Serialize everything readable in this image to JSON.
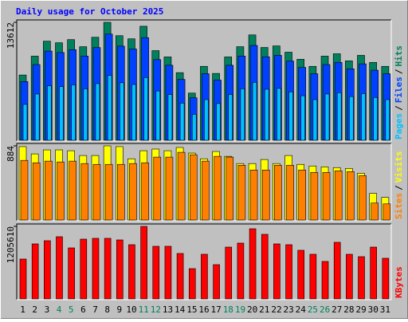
{
  "chart_data": [
    {
      "type": "bar",
      "title": "Daily usage for October 2025",
      "ylim": [
        0,
        13612
      ],
      "yticks": [
        13612
      ],
      "legend_separator": "/",
      "series": [
        {
          "name": "Hits",
          "color": "#00805c",
          "values": [
            7532,
            9710,
            11434,
            11253,
            11616,
            10799,
            11888,
            13612,
            12070,
            11707,
            13159,
            10345,
            9619,
            7804,
            5445,
            8530,
            7713,
            9619,
            10799,
            12160,
            10708,
            10890,
            10164,
            9347,
            8530,
            9710,
            9982,
            9165,
            9800,
            8984,
            8530
          ]
        },
        {
          "name": "Files",
          "color": "#0040ff",
          "values": [
            6779,
            8739,
            10291,
            10128,
            10454,
            9719,
            10699,
            12251,
            10863,
            10536,
            11843,
            9311,
            8657,
            7024,
            4901,
            7677,
            6942,
            8657,
            9719,
            10944,
            9637,
            9801,
            9148,
            8412,
            7677,
            8739,
            8984,
            8249,
            8820,
            8086,
            7677
          ]
        },
        {
          "name": "Pages",
          "color": "#00c0ff",
          "values": [
            4143,
            5341,
            6289,
            6189,
            6389,
            5939,
            6538,
            7487,
            6639,
            6439,
            7237,
            5690,
            5290,
            4292,
            2995,
            4692,
            4242,
            5290,
            5939,
            6688,
            5889,
            5990,
            5590,
            5141,
            4692,
            5341,
            5490,
            5041,
            5390,
            4941,
            4692
          ]
        }
      ]
    },
    {
      "type": "bar",
      "ylim": [
        0,
        884
      ],
      "yticks": [
        884
      ],
      "legend_separator": "/",
      "series": [
        {
          "name": "Visits",
          "color": "#ffff00",
          "values": [
            875,
            788,
            836,
            836,
            826,
            769,
            769,
            884,
            875,
            730,
            826,
            846,
            826,
            865,
            798,
            730,
            817,
            759,
            673,
            673,
            721,
            673,
            769,
            663,
            644,
            634,
            625,
            615,
            557,
            317,
            269
          ]
        },
        {
          "name": "Sites",
          "color": "#ff8000",
          "values": [
            711,
            682,
            702,
            692,
            702,
            673,
            663,
            663,
            663,
            673,
            682,
            750,
            750,
            807,
            778,
            702,
            759,
            750,
            653,
            596,
            596,
            653,
            653,
            596,
            567,
            567,
            586,
            577,
            529,
            202,
            192
          ]
        }
      ]
    },
    {
      "type": "bar",
      "ylim": [
        0,
        1205610
      ],
      "yticks": [
        1205610
      ],
      "categories": [
        "1",
        "2",
        "3",
        "4",
        "5",
        "6",
        "7",
        "8",
        "9",
        "10",
        "11",
        "12",
        "13",
        "14",
        "15",
        "16",
        "17",
        "18",
        "19",
        "20",
        "21",
        "22",
        "23",
        "24",
        "25",
        "26",
        "27",
        "28",
        "29",
        "30",
        "31"
      ],
      "category_colors": [
        "#000000",
        "#000000",
        "#000000",
        "#00805c",
        "#00805c",
        "#000000",
        "#000000",
        "#000000",
        "#000000",
        "#000000",
        "#00805c",
        "#00805c",
        "#000000",
        "#000000",
        "#000000",
        "#000000",
        "#000000",
        "#00805c",
        "#00805c",
        "#000000",
        "#000000",
        "#000000",
        "#000000",
        "#000000",
        "#00805c",
        "#00805c",
        "#000000",
        "#000000",
        "#000000",
        "#000000",
        "#000000"
      ],
      "series": [
        {
          "name": "KBytes",
          "color": "#ff0000",
          "values": [
            662450,
            914181,
            967177,
            1033422,
            847936,
            993675,
            1006924,
            1006924,
            980426,
            900932,
            1205610,
            874434,
            874434,
            755193,
            503462,
            741944,
            569707,
            861185,
            927430,
            1165912,
            1073169,
            914181,
            900932,
            808189,
            741944,
            622703,
            940679,
            741944,
            702197,
            861185,
            675699
          ]
        }
      ]
    }
  ]
}
